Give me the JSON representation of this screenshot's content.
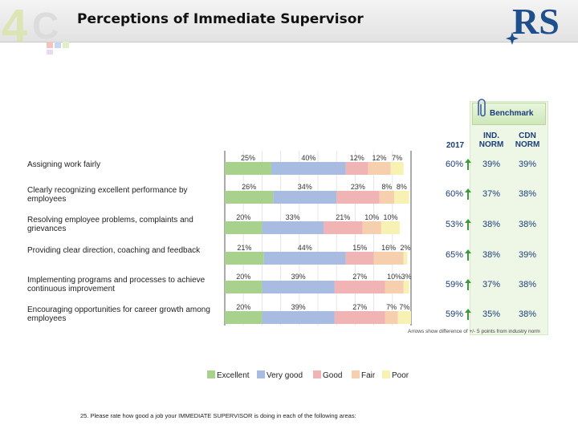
{
  "title": "Perceptions of Immediate Supervisor",
  "logo_left_text": "4C",
  "logo_right_text": "RS",
  "colors": {
    "Excellent": "#a9d18e",
    "Very good": "#a7bce0",
    "Good": "#f0b4b4",
    "Fair": "#f6cfae",
    "Poor": "#f7f1b3",
    "accent": "#1a3d7a",
    "arrow": "#3a9a3a"
  },
  "benchmark": {
    "title": "Benchmark",
    "col_2017": "2017",
    "col_ind": [
      "IND.",
      "NORM"
    ],
    "col_cdn": [
      "CDN",
      "NORM"
    ],
    "rows": [
      {
        "y2017": "60%",
        "ind": "39%",
        "cdn": "39%"
      },
      {
        "y2017": "60%",
        "ind": "37%",
        "cdn": "38%"
      },
      {
        "y2017": "53%",
        "ind": "38%",
        "cdn": "38%"
      },
      {
        "y2017": "65%",
        "ind": "38%",
        "cdn": "39%"
      },
      {
        "y2017": "59%",
        "ind": "37%",
        "cdn": "38%"
      },
      {
        "y2017": "59%",
        "ind": "35%",
        "cdn": "38%"
      }
    ],
    "note": "Arrows show difference of +/- 5 points from industry norm"
  },
  "footer": "25. Please rate how good a job your IMMEDIATE SUPERVISOR is doing in each of the following areas:",
  "chart_data": {
    "type": "bar",
    "orientation": "horizontal-stacked-100",
    "categories": [
      "Assigning work fairly",
      "Clearly recognizing excellent performance by employees",
      "Resolving employee problems, complaints and grievances",
      "Providing clear direction, coaching and feedback",
      "Implementing programs and processes to achieve continuous improvement",
      "Encouraging opportunities for career growth among employees"
    ],
    "series": [
      {
        "name": "Excellent",
        "values": [
          25,
          26,
          20,
          21,
          20,
          20
        ],
        "labels": [
          "25%",
          "26%",
          "20%",
          "21%",
          "20%",
          "20%"
        ]
      },
      {
        "name": "Very good",
        "values": [
          40,
          34,
          33,
          44,
          39,
          39
        ],
        "labels": [
          "40%",
          "34%",
          "33%",
          "44%",
          "39%",
          "39%"
        ]
      },
      {
        "name": "Good",
        "values": [
          12,
          23,
          21,
          15,
          27,
          27
        ],
        "labels": [
          "12%",
          "23%",
          "21%",
          "15%",
          "27%",
          "27%"
        ]
      },
      {
        "name": "Fair",
        "values": [
          12,
          8,
          10,
          16,
          10,
          7
        ],
        "labels": [
          "12%",
          "8%",
          "10%",
          "16%",
          "10%",
          "7%"
        ]
      },
      {
        "name": "Poor",
        "values": [
          7,
          8,
          10,
          2,
          3,
          7
        ],
        "labels": [
          "7%",
          "8%",
          "10%",
          "2%",
          "3%",
          "7%"
        ]
      }
    ],
    "xlim": [
      0,
      100
    ],
    "legend": "bottom",
    "grid": true
  }
}
